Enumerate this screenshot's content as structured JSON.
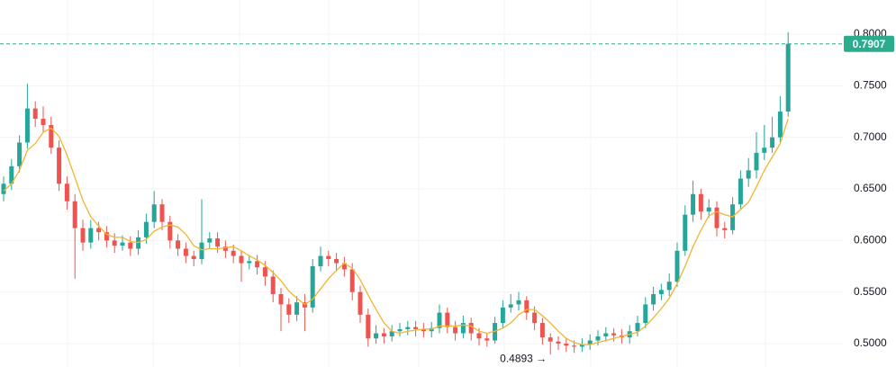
{
  "chart_data": {
    "type": "candlestick",
    "open": [
      0.645,
      0.655,
      0.672,
      0.695,
      0.728,
      0.718,
      0.712,
      0.69,
      0.655,
      0.638,
      0.612,
      0.598,
      0.612,
      0.608,
      0.6,
      0.595,
      0.598,
      0.592,
      0.603,
      0.618,
      0.635,
      0.618,
      0.6,
      0.592,
      0.585,
      0.582,
      0.598,
      0.602,
      0.594,
      0.59,
      0.585,
      0.578,
      0.58,
      0.574,
      0.565,
      0.548,
      0.538,
      0.528,
      0.54,
      0.535,
      0.575,
      0.585,
      0.582,
      0.578,
      0.572,
      0.55,
      0.528,
      0.505,
      0.51,
      0.507,
      0.512,
      0.514,
      0.516,
      0.514,
      0.512,
      0.515,
      0.53,
      0.516,
      0.51,
      0.52,
      0.51,
      0.505,
      0.503,
      0.52,
      0.535,
      0.538,
      0.542,
      0.53,
      0.52,
      0.506,
      0.502,
      0.5,
      0.498,
      0.497,
      0.499,
      0.503,
      0.507,
      0.51,
      0.508,
      0.506,
      0.512,
      0.52,
      0.538,
      0.548,
      0.552,
      0.56,
      0.59,
      0.625,
      0.645,
      0.628,
      0.632,
      0.612,
      0.61,
      0.635,
      0.66,
      0.668,
      0.685,
      0.69,
      0.7,
      0.725
    ],
    "high": [
      0.662,
      0.679,
      0.702,
      0.752,
      0.735,
      0.73,
      0.72,
      0.697,
      0.662,
      0.645,
      0.62,
      0.62,
      0.618,
      0.614,
      0.607,
      0.605,
      0.604,
      0.61,
      0.626,
      0.648,
      0.64,
      0.624,
      0.606,
      0.598,
      0.59,
      0.64,
      0.608,
      0.608,
      0.6,
      0.596,
      0.59,
      0.586,
      0.586,
      0.58,
      0.571,
      0.554,
      0.544,
      0.546,
      0.548,
      0.582,
      0.594,
      0.59,
      0.588,
      0.584,
      0.578,
      0.556,
      0.534,
      0.518,
      0.515,
      0.518,
      0.52,
      0.522,
      0.522,
      0.52,
      0.521,
      0.538,
      0.535,
      0.522,
      0.527,
      0.525,
      0.515,
      0.51,
      0.526,
      0.542,
      0.548,
      0.55,
      0.546,
      0.536,
      0.525,
      0.51,
      0.507,
      0.505,
      0.503,
      0.505,
      0.509,
      0.513,
      0.516,
      0.515,
      0.514,
      0.518,
      0.527,
      0.545,
      0.555,
      0.558,
      0.568,
      0.598,
      0.634,
      0.658,
      0.65,
      0.64,
      0.638,
      0.618,
      0.642,
      0.668,
      0.68,
      0.705,
      0.712,
      0.72,
      0.74,
      0.802
    ],
    "low": [
      0.638,
      0.649,
      0.666,
      0.689,
      0.71,
      0.705,
      0.684,
      0.648,
      0.63,
      0.563,
      0.59,
      0.592,
      0.6,
      0.593,
      0.588,
      0.59,
      0.585,
      0.586,
      0.597,
      0.612,
      0.61,
      0.592,
      0.585,
      0.578,
      0.575,
      0.577,
      0.592,
      0.588,
      0.583,
      0.578,
      0.56,
      0.572,
      0.567,
      0.556,
      0.54,
      0.512,
      0.52,
      0.522,
      0.512,
      0.53,
      0.57,
      0.575,
      0.57,
      0.565,
      0.542,
      0.52,
      0.497,
      0.5,
      0.5,
      0.502,
      0.507,
      0.508,
      0.507,
      0.506,
      0.506,
      0.51,
      0.51,
      0.503,
      0.505,
      0.503,
      0.498,
      0.497,
      0.5,
      0.515,
      0.53,
      0.532,
      0.523,
      0.513,
      0.499,
      0.4893,
      0.494,
      0.492,
      0.491,
      0.492,
      0.494,
      0.498,
      0.502,
      0.502,
      0.5,
      0.5,
      0.507,
      0.515,
      0.532,
      0.542,
      0.546,
      0.555,
      0.585,
      0.618,
      0.62,
      0.622,
      0.604,
      0.602,
      0.606,
      0.63,
      0.652,
      0.66,
      0.678,
      0.685,
      0.695,
      0.72
    ],
    "close": [
      0.655,
      0.672,
      0.695,
      0.728,
      0.718,
      0.712,
      0.69,
      0.655,
      0.638,
      0.612,
      0.598,
      0.612,
      0.608,
      0.6,
      0.595,
      0.598,
      0.592,
      0.603,
      0.618,
      0.635,
      0.618,
      0.6,
      0.592,
      0.585,
      0.582,
      0.598,
      0.602,
      0.594,
      0.59,
      0.585,
      0.578,
      0.58,
      0.574,
      0.565,
      0.548,
      0.538,
      0.528,
      0.54,
      0.535,
      0.575,
      0.585,
      0.582,
      0.578,
      0.572,
      0.55,
      0.528,
      0.505,
      0.51,
      0.507,
      0.512,
      0.514,
      0.516,
      0.514,
      0.512,
      0.515,
      0.53,
      0.516,
      0.51,
      0.52,
      0.51,
      0.505,
      0.503,
      0.52,
      0.535,
      0.538,
      0.542,
      0.53,
      0.52,
      0.506,
      0.502,
      0.5,
      0.498,
      0.497,
      0.499,
      0.503,
      0.507,
      0.51,
      0.508,
      0.506,
      0.512,
      0.52,
      0.538,
      0.548,
      0.552,
      0.56,
      0.59,
      0.625,
      0.645,
      0.628,
      0.632,
      0.612,
      0.61,
      0.635,
      0.66,
      0.668,
      0.685,
      0.69,
      0.7,
      0.725,
      0.7907
    ],
    "ma": {
      "color": "#f2b431",
      "values": [
        0.648,
        0.655,
        0.668,
        0.6875,
        0.694,
        0.705,
        0.709,
        0.701,
        0.683,
        0.661,
        0.639,
        0.623,
        0.614,
        0.606,
        0.603,
        0.603,
        0.599,
        0.598,
        0.601,
        0.609,
        0.613,
        0.615,
        0.613,
        0.606,
        0.595,
        0.591,
        0.592,
        0.592,
        0.593,
        0.594,
        0.59,
        0.585,
        0.581,
        0.576,
        0.569,
        0.561,
        0.551,
        0.544,
        0.538,
        0.543,
        0.553,
        0.563,
        0.571,
        0.578,
        0.573,
        0.562,
        0.547,
        0.533,
        0.52,
        0.512,
        0.51,
        0.512,
        0.513,
        0.514,
        0.514,
        0.517,
        0.517,
        0.517,
        0.518,
        0.517,
        0.512,
        0.51,
        0.512,
        0.515,
        0.52,
        0.528,
        0.533,
        0.533,
        0.527,
        0.52,
        0.512,
        0.505,
        0.501,
        0.499,
        0.499,
        0.501,
        0.503,
        0.505,
        0.507,
        0.509,
        0.511,
        0.517,
        0.525,
        0.534,
        0.544,
        0.558,
        0.575,
        0.594,
        0.61,
        0.624,
        0.628,
        0.625,
        0.623,
        0.63,
        0.637,
        0.652,
        0.668,
        0.681,
        0.694,
        0.718
      ]
    },
    "up_color": "#26a69a",
    "down_color": "#ef5350",
    "ylim": [
      0.4773,
      0.8332
    ],
    "yticks": [
      {
        "value": 0.8,
        "label": "0.8000"
      },
      {
        "value": 0.75,
        "label": "0.7500"
      },
      {
        "value": 0.7,
        "label": "0.7000"
      },
      {
        "value": 0.65,
        "label": "0.6500"
      },
      {
        "value": 0.6,
        "label": "0.6000"
      },
      {
        "value": 0.55,
        "label": "0.5500"
      },
      {
        "value": 0.5,
        "label": "0.5000"
      }
    ],
    "grid": true,
    "last_price": 0.7907,
    "last_price_color": "#2bac8d",
    "low_annotation": {
      "value": 0.4893,
      "label": "0.4893 →"
    }
  }
}
